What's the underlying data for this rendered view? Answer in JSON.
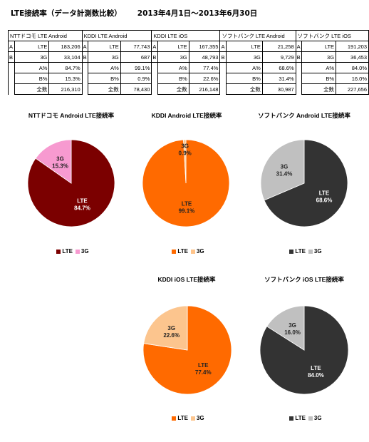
{
  "header": {
    "title": "LTE接続率（データ計測数比較）",
    "period": "2013年4月1日～2013年6月30日"
  },
  "table": {
    "groups": [
      {
        "name": "NTTドコモ LTE Android",
        "a_label": "A",
        "b_label": "B",
        "lte_label": "LTE",
        "g3_label": "3G",
        "lte": "183,206",
        "g3": "33,104",
        "a_pct_label": "A%",
        "b_pct_label": "B%",
        "total_label": "全数",
        "a_pct": "84.7%",
        "b_pct": "15.3%",
        "total": "216,310"
      },
      {
        "name": "KDDI LTE Android",
        "a_label": "A",
        "b_label": "B",
        "lte_label": "LTE",
        "g3_label": "3G",
        "lte": "77,743",
        "g3": "687",
        "a_pct_label": "A%",
        "b_pct_label": "B%",
        "total_label": "全数",
        "a_pct": "99.1%",
        "b_pct": "0.9%",
        "total": "78,430"
      },
      {
        "name": "KDDI LTE iOS",
        "a_label": "A",
        "b_label": "B",
        "lte_label": "LTE",
        "g3_label": "3G",
        "lte": "167,355",
        "g3": "48,793",
        "a_pct_label": "A%",
        "b_pct_label": "B%",
        "total_label": "全数",
        "a_pct": "77.4%",
        "b_pct": "22.6%",
        "total": "216,148"
      },
      {
        "name": "ソフトバンク LTE Android",
        "a_label": "A",
        "b_label": "B",
        "lte_label": "LTE",
        "g3_label": "3G",
        "lte": "21,258",
        "g3": "9,729",
        "a_pct_label": "A%",
        "b_pct_label": "B%",
        "total_label": "全数",
        "a_pct": "68.6%",
        "b_pct": "31.4%",
        "total": "30,987"
      },
      {
        "name": "ソフトバンク LTE iOS",
        "a_label": "A",
        "b_label": "B",
        "lte_label": "LTE",
        "g3_label": "3G",
        "lte": "191,203",
        "g3": "36,453",
        "a_pct_label": "A%",
        "b_pct_label": "B%",
        "total_label": "全数",
        "a_pct": "84.0%",
        "b_pct": "16.0%",
        "total": "227,656"
      }
    ]
  },
  "chart_data": [
    {
      "type": "pie",
      "title": "NTTドコモ Android LTE接続率",
      "categories": [
        "LTE",
        "3G"
      ],
      "values": [
        84.7,
        15.3
      ],
      "slice_labels": [
        "LTE\n84.7%",
        "3G\n15.3%"
      ],
      "colors": [
        "#7b0000",
        "#f79ad0"
      ],
      "legend": [
        "LTE",
        "3G"
      ],
      "legend_position": "bottom"
    },
    {
      "type": "pie",
      "title": "KDDI Android LTE接続率",
      "categories": [
        "LTE",
        "3G"
      ],
      "values": [
        99.1,
        0.9
      ],
      "slice_labels": [
        "LTE\n99.1%",
        "3G\n0.9%"
      ],
      "colors": [
        "#ff6a00",
        "#ffc48a"
      ],
      "legend": [
        "LTE",
        "3G"
      ],
      "legend_position": "bottom"
    },
    {
      "type": "pie",
      "title": "ソフトバンク Android LTE接続率",
      "categories": [
        "LTE",
        "3G"
      ],
      "values": [
        68.6,
        31.4
      ],
      "slice_labels": [
        "LTE\n68.6%",
        "3G\n31.4%"
      ],
      "colors": [
        "#333333",
        "#c0c0c0"
      ],
      "legend": [
        "LTE",
        "3G"
      ],
      "legend_position": "bottom"
    },
    {
      "type": "pie",
      "title": "KDDI iOS LTE接続率",
      "categories": [
        "LTE",
        "3G"
      ],
      "values": [
        77.4,
        22.6
      ],
      "slice_labels": [
        "LTE\n77.4%",
        "3G\n22.6%"
      ],
      "colors": [
        "#ff6a00",
        "#fcc58e"
      ],
      "legend": [
        "LTE",
        "3G"
      ],
      "legend_position": "bottom"
    },
    {
      "type": "pie",
      "title": "ソフトバンク iOS LTE接続率",
      "categories": [
        "LTE",
        "3G"
      ],
      "values": [
        84.0,
        16.0
      ],
      "slice_labels": [
        "LTE\n84.0%",
        "3G\n16.0%"
      ],
      "colors": [
        "#333333",
        "#c0c0c0"
      ],
      "legend": [
        "LTE",
        "3G"
      ],
      "legend_position": "bottom"
    }
  ]
}
